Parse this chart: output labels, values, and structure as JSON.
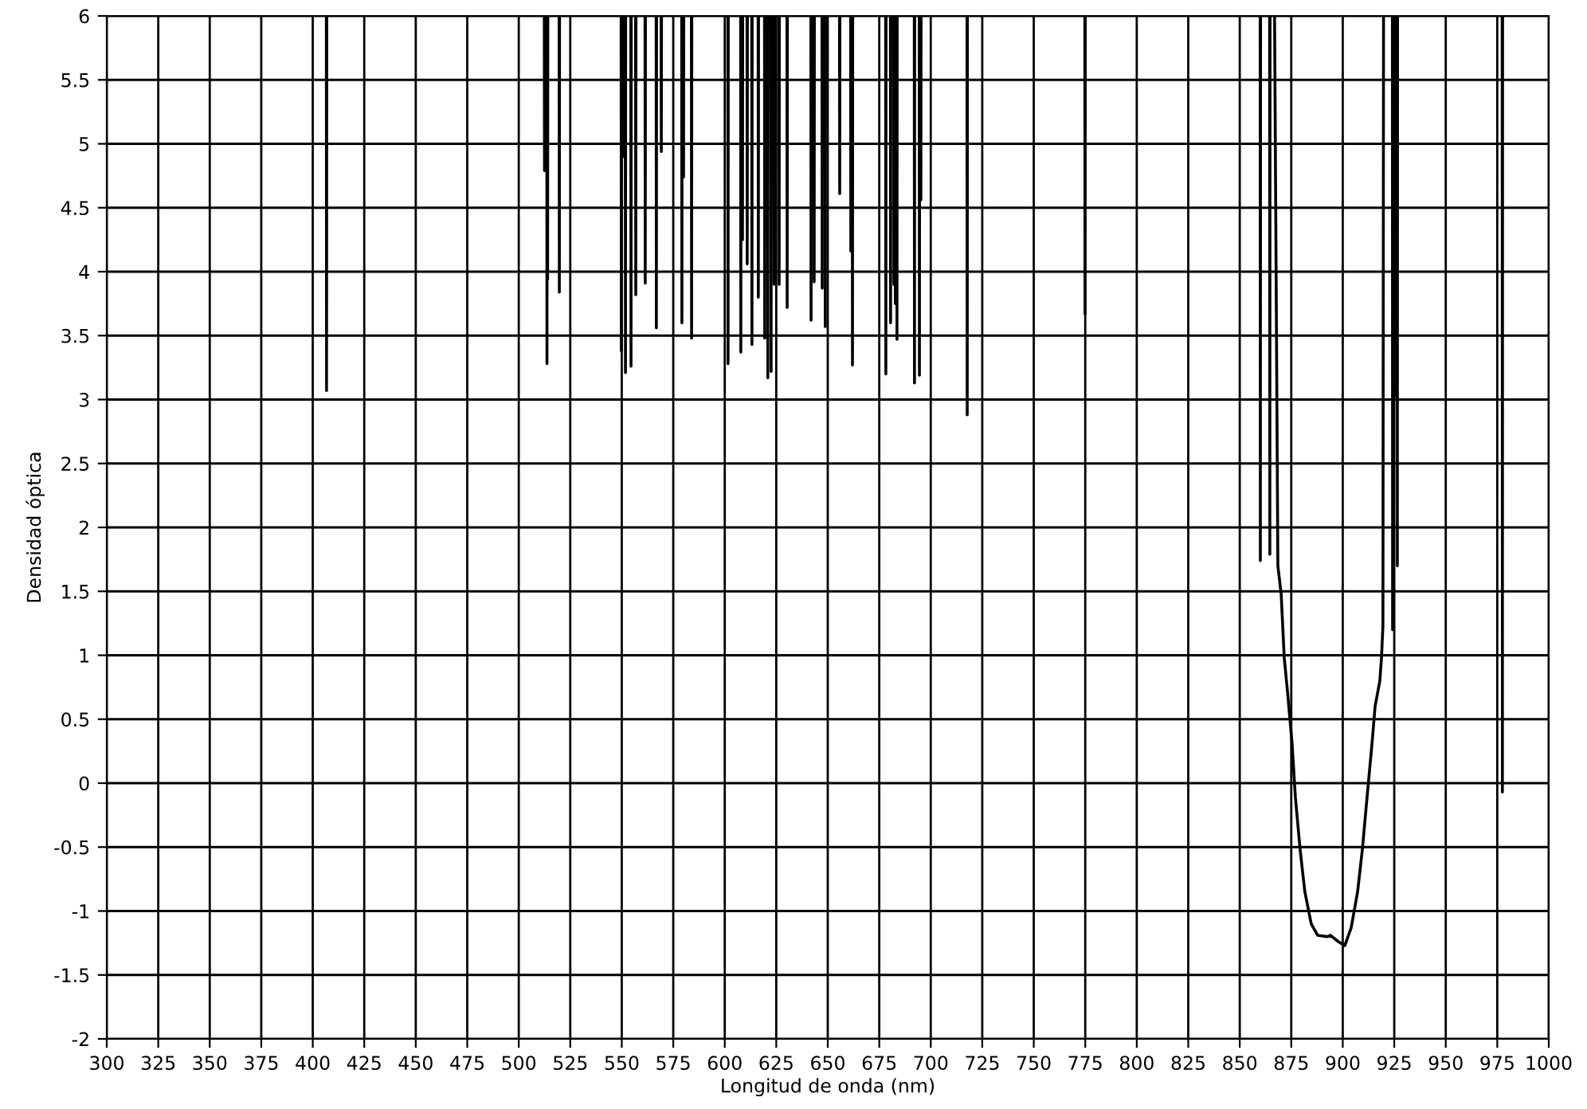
{
  "chart_data": {
    "type": "line",
    "xlabel": "Longitud de onda (nm)",
    "ylabel": "Densidad óptica",
    "xlim": [
      300,
      1000
    ],
    "xticks": [
      300,
      325,
      350,
      375,
      400,
      425,
      450,
      475,
      500,
      525,
      550,
      575,
      600,
      625,
      650,
      675,
      700,
      725,
      750,
      775,
      800,
      825,
      850,
      875,
      900,
      925,
      950,
      975,
      1000
    ],
    "ylim": [
      -2,
      6
    ],
    "yticks": [
      -2,
      -1.5,
      -1,
      -0.5,
      0,
      0.5,
      1,
      1.5,
      2,
      2.5,
      3,
      3.5,
      4,
      4.5,
      5,
      5.5,
      6
    ],
    "grid": true,
    "series": [
      {
        "color": "#000000",
        "x": [
          406.6,
          406.7,
          406.8,
          406.82,
          512.4,
          512.5,
          512.6,
          512.62,
          513.6,
          513.7,
          513.8,
          513.82,
          513.9,
          514.0,
          514.1,
          514.12,
          519.6,
          519.7,
          519.8,
          519.82,
          549.7,
          549.8,
          549.9,
          549.92,
          550.5,
          550.6,
          550.7,
          550.72,
          551.7,
          551.8,
          551.9,
          551.92,
          554.4,
          554.5,
          554.6,
          554.62,
          556.7,
          556.8,
          556.9,
          556.92,
          561.3,
          561.4,
          561.5,
          561.52,
          566.7,
          566.8,
          566.9,
          566.92,
          569.1,
          569.2,
          569.3,
          569.32,
          579.1,
          579.2,
          579.3,
          579.32,
          579.9,
          580.0,
          580.1,
          580.12,
          583.8,
          583.9,
          584.0,
          584.02,
          601.5,
          601.6,
          601.7,
          601.72,
          607.7,
          607.8,
          607.9,
          607.92,
          608.5,
          608.6,
          608.7,
          608.72,
          610.8,
          610.9,
          611.0,
          611.02,
          613.1,
          613.2,
          613.3,
          613.32,
          616.2,
          616.3,
          616.4,
          616.42,
          619.3,
          619.4,
          619.5,
          619.52,
          620.8,
          620.9,
          621.0,
          621.02,
          622.4,
          622.5,
          622.6,
          622.62,
          623.2,
          623.3,
          623.4,
          623.42,
          623.9,
          624.0,
          624.1,
          624.12,
          626.3,
          626.4,
          626.5,
          626.52,
          630.2,
          630.3,
          630.4,
          630.42,
          641.8,
          641.9,
          642.0,
          642.02,
          643.3,
          643.4,
          643.5,
          643.52,
          647.2,
          647.3,
          647.4,
          647.42,
          648.7,
          648.8,
          648.9,
          648.92,
          655.7,
          655.8,
          655.9,
          655.92,
          661.1,
          661.2,
          661.3,
          661.32,
          661.9,
          662.0,
          662.1,
          662.12,
          678.1,
          678.2,
          678.3,
          678.32,
          680.4,
          680.5,
          680.6,
          680.62,
          682.0,
          682.1,
          682.2,
          682.22,
          682.7,
          682.8,
          682.9,
          682.92,
          683.5,
          683.6,
          683.7,
          683.72,
          692.0,
          692.1,
          692.2,
          692.22,
          694.4,
          694.5,
          694.6,
          694.62,
          695.1,
          695.2,
          695.3,
          695.32,
          717.6,
          717.7,
          717.8,
          717.82,
          774.8,
          774.9,
          775.0,
          775.02,
          859.9,
          860.0,
          860.1,
          860.12,
          864.5,
          864.6,
          864.7,
          864.72,
          866.9,
          868.5,
          870.1,
          871.6,
          873.1,
          875.4,
          877.0,
          879.3,
          881.6,
          884.7,
          887.8,
          892.5,
          894.0,
          897.9,
          901.0,
          904.1,
          907.2,
          909.5,
          911.8,
          914.2,
          915.7,
          918.0,
          918.8,
          919.5,
          919.8,
          919.82,
          924.1,
          924.2,
          924.3,
          924.32,
          925.6,
          925.7,
          925.8,
          925.82,
          926.4,
          926.5,
          926.6,
          926.62,
          977.4,
          977.5,
          977.6
        ],
        "values": [
          6,
          3.07,
          6,
          null,
          6,
          4.79,
          6,
          null,
          6,
          3.28,
          6,
          null,
          6,
          3.94,
          6,
          null,
          6,
          3.84,
          6,
          null,
          6,
          3.38,
          6,
          null,
          6,
          4.9,
          6,
          null,
          6,
          3.21,
          6,
          null,
          6,
          3.26,
          6,
          null,
          6,
          3.82,
          6,
          null,
          6,
          3.91,
          6,
          null,
          6,
          3.56,
          6,
          null,
          6,
          4.94,
          6,
          null,
          6,
          3.6,
          6,
          null,
          6,
          4.74,
          6,
          null,
          6,
          3.48,
          6,
          null,
          6,
          3.28,
          6,
          null,
          6,
          3.37,
          6,
          null,
          6,
          4.25,
          6,
          null,
          6,
          4.06,
          6,
          null,
          6,
          3.43,
          6,
          null,
          6,
          3.8,
          6,
          null,
          6,
          3.48,
          6,
          null,
          6,
          3.17,
          6,
          null,
          6,
          3.22,
          6,
          null,
          6,
          5.59,
          6,
          null,
          6,
          3.9,
          6,
          null,
          6,
          3.9,
          6,
          null,
          6,
          3.72,
          6,
          null,
          6,
          3.62,
          6,
          null,
          6,
          3.92,
          6,
          null,
          6,
          3.87,
          6,
          null,
          6,
          3.57,
          6,
          null,
          6,
          4.61,
          6,
          null,
          6,
          4.16,
          6,
          null,
          6,
          3.27,
          6,
          null,
          6,
          3.2,
          6,
          null,
          6,
          3.6,
          6,
          null,
          6,
          3.9,
          6,
          null,
          6,
          3.75,
          6,
          null,
          6,
          3.47,
          6,
          null,
          6,
          3.13,
          6,
          null,
          6,
          3.19,
          6,
          null,
          6,
          4.56,
          6,
          null,
          6,
          2.88,
          6,
          null,
          6,
          3.67,
          6,
          null,
          6,
          1.74,
          6,
          null,
          6,
          1.79,
          6,
          null,
          6,
          1.7,
          1.48,
          0.98,
          0.73,
          0.31,
          -0.11,
          -0.52,
          -0.85,
          -1.1,
          -1.19,
          -1.2,
          -1.19,
          -1.24,
          -1.27,
          -1.13,
          -0.85,
          -0.52,
          -0.11,
          0.31,
          0.6,
          0.8,
          0.98,
          1.23,
          6,
          null,
          6,
          1.2,
          6,
          null,
          6,
          3.03,
          6,
          null,
          6,
          1.7,
          6,
          null,
          6,
          -0.07,
          6
        ]
      }
    ]
  }
}
